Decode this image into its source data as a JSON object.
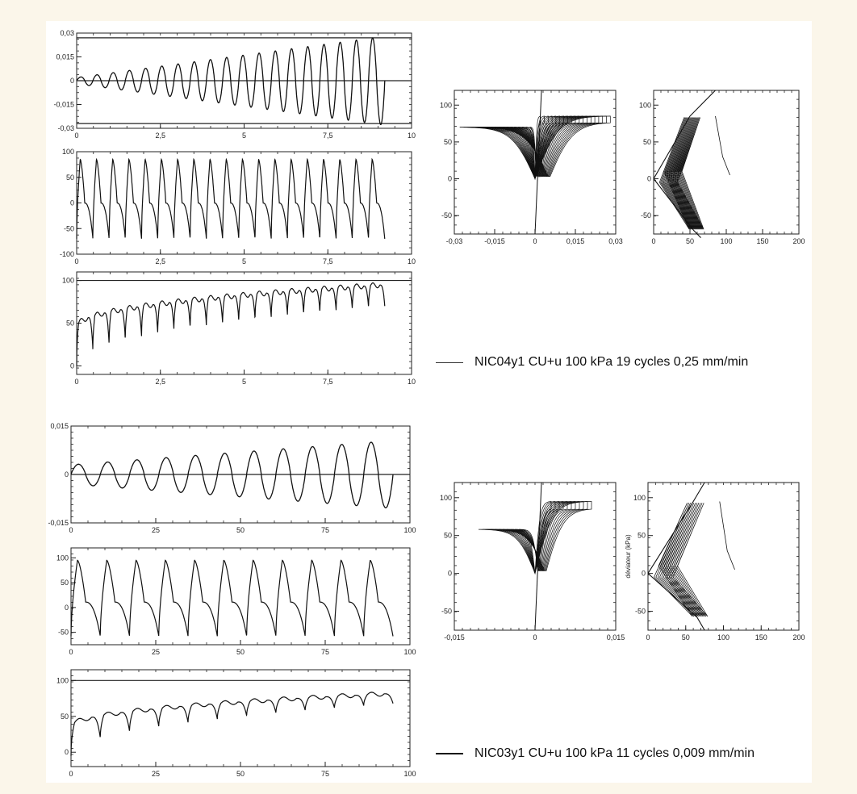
{
  "tests": [
    {
      "legend": "NIC04y1 CU+u 100 kPa  19 cycles  0,25 mm/min",
      "cycles": 19,
      "time_max": 9.2,
      "strain_start": 0.002,
      "strain_end": 0.028
    },
    {
      "legend": "NIC03y1 CU+u 100 kPa  11 cycles  0,009 mm/min",
      "cycles": 11,
      "time_max": 95,
      "strain_start": 0.003,
      "strain_end": 0.0105
    }
  ],
  "chart_data": [
    {
      "type": "line",
      "xlim": [
        0,
        10
      ],
      "ylim": [
        -0.03,
        0.03
      ],
      "x_ticks": [
        "0",
        "2,5",
        "5",
        "7,5",
        "10"
      ],
      "y_ticks": [
        "-0,03",
        "-0,015",
        "0",
        "0,015",
        "0,03"
      ],
      "ref_lines": [
        0.027,
        0,
        -0.027
      ],
      "series": [
        {
          "cycles": 19,
          "start": 0.002,
          "end": 0.028,
          "x_max": 9.2
        }
      ]
    },
    {
      "type": "line",
      "xlim": [
        0,
        10
      ],
      "ylim": [
        -100,
        100
      ],
      "x_ticks": [
        "0",
        "2,5",
        "5",
        "7,5",
        "10"
      ],
      "y_ticks": [
        "-100",
        "-50",
        "0",
        "50",
        "100"
      ],
      "series": [
        {
          "cycles": 19,
          "upper": 85,
          "lower": -70,
          "x_max": 9.2
        }
      ]
    },
    {
      "type": "line",
      "xlim": [
        0,
        10
      ],
      "ylim": [
        -10,
        110
      ],
      "x_ticks": [
        "0",
        "2,5",
        "5",
        "7,5",
        "10"
      ],
      "y_ticks": [
        "0",
        "50",
        "100"
      ],
      "ref_lines": [
        100
      ],
      "series": [
        {
          "cycles": 19,
          "upper_start": 45,
          "upper_end": 95,
          "lower_start": 0,
          "lower_end": 70,
          "x_max": 9.2
        }
      ]
    },
    {
      "type": "line",
      "xlim": [
        -0.03,
        0.03
      ],
      "ylim": [
        -75,
        120
      ],
      "x_ticks": [
        "-0,03",
        "-0,015",
        "0",
        "0,015",
        "0,03"
      ],
      "y_ticks": [
        "-50",
        "0",
        "50",
        "100"
      ],
      "series": [
        {
          "loops": 19,
          "x_start": 0.002,
          "x_end": 0.028,
          "upper": 85,
          "lower": -70
        }
      ]
    },
    {
      "type": "line",
      "xlim": [
        0,
        200
      ],
      "ylim": [
        -75,
        120
      ],
      "x_ticks": [
        "0",
        "50",
        "100",
        "150",
        "200"
      ],
      "y_ticks": [
        "-50",
        "0",
        "50",
        "100"
      ],
      "series": [
        {
          "paths": 19,
          "envelope_upper": [
            [
              0,
              0
            ],
            [
              50,
              85
            ],
            [
              85,
              120
            ]
          ],
          "envelope_lower": [
            [
              0,
              0
            ],
            [
              55,
              -70
            ],
            [
              65,
              -80
            ]
          ]
        }
      ]
    },
    {
      "type": "line",
      "xlim": [
        0,
        100
      ],
      "ylim": [
        -0.015,
        0.015
      ],
      "x_ticks": [
        "0",
        "25",
        "50",
        "75",
        "100"
      ],
      "y_ticks": [
        "-0,015",
        "0",
        "0,015"
      ],
      "ref_lines": [
        0
      ],
      "series": [
        {
          "cycles": 11,
          "start": 0.003,
          "end": 0.0105,
          "x_max": 95
        }
      ]
    },
    {
      "type": "line",
      "xlim": [
        0,
        100
      ],
      "ylim": [
        -75,
        120
      ],
      "x_ticks": [
        "0",
        "25",
        "50",
        "75",
        "100"
      ],
      "y_ticks": [
        "-50",
        "0",
        "50",
        "100"
      ],
      "series": [
        {
          "cycles": 11,
          "upper": 95,
          "lower": -58,
          "x_max": 95
        }
      ]
    },
    {
      "type": "line",
      "xlim": [
        0,
        100
      ],
      "ylim": [
        -20,
        115
      ],
      "x_ticks": [
        "0",
        "25",
        "50",
        "75",
        "100"
      ],
      "y_ticks": [
        "0",
        "50",
        "100"
      ],
      "ref_lines": [
        100
      ],
      "series": [
        {
          "cycles": 11,
          "upper_start": 35,
          "upper_end": 82,
          "lower_start": -5,
          "lower_end": 68,
          "x_max": 95
        }
      ]
    },
    {
      "type": "line",
      "xlim": [
        -0.015,
        0.015
      ],
      "ylim": [
        -75,
        120
      ],
      "x_ticks": [
        "-0,015",
        "0",
        "0,015"
      ],
      "y_ticks": [
        "-50",
        "0",
        "50",
        "100"
      ],
      "series": [
        {
          "loops": 11,
          "x_start": 0.003,
          "x_end": 0.0105,
          "upper": 95,
          "lower": -58
        }
      ]
    },
    {
      "type": "line",
      "xlim": [
        0,
        200
      ],
      "ylim": [
        -75,
        120
      ],
      "x_ticks": [
        "0",
        "50",
        "100",
        "150",
        "200"
      ],
      "y_ticks": [
        "-50",
        "0",
        "50",
        "100"
      ],
      "ylabel": "déviateur (kPa)",
      "series": [
        {
          "paths": 11,
          "envelope_upper": [
            [
              0,
              0
            ],
            [
              60,
              95
            ],
            [
              75,
              120
            ]
          ],
          "envelope_lower": [
            [
              0,
              0
            ],
            [
              65,
              -58
            ],
            [
              75,
              -75
            ]
          ]
        }
      ]
    }
  ]
}
